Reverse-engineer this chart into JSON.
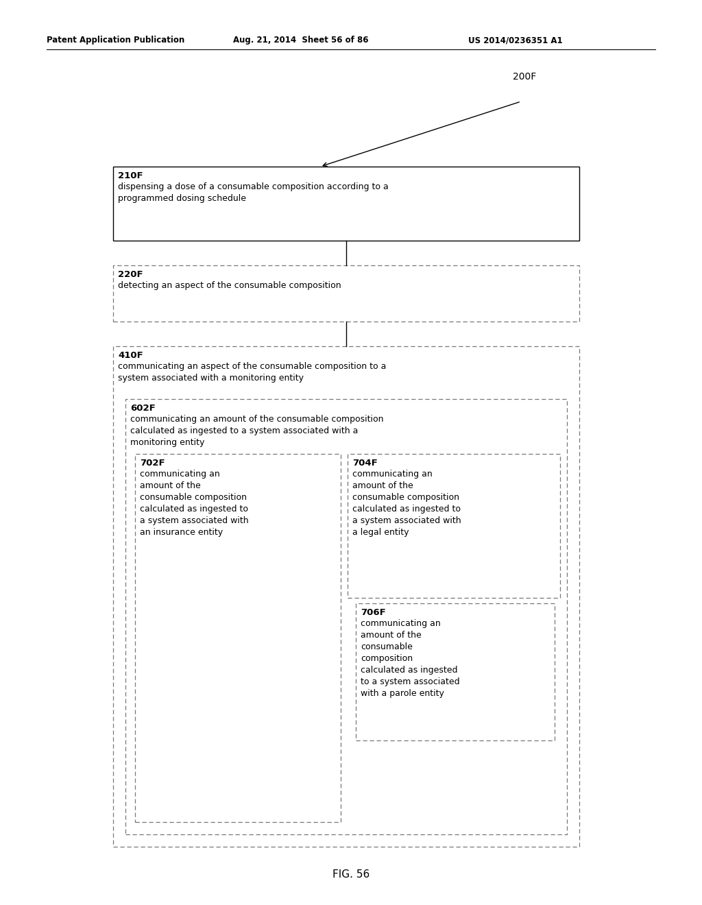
{
  "header_left": "Patent Application Publication",
  "header_mid": "Aug. 21, 2014  Sheet 56 of 86",
  "header_right": "US 2014/0236351 A1",
  "label_200F": "200F",
  "fig_label": "FIG. 56",
  "box_210F_label": "210F",
  "box_210F_text": "dispensing a dose of a consumable composition according to a\nprogrammed dosing schedule",
  "box_220F_label": "220F",
  "box_220F_text": "detecting an aspect of the consumable composition",
  "box_410F_label": "410F",
  "box_410F_text": "communicating an aspect of the consumable composition to a\nsystem associated with a monitoring entity",
  "box_602F_label": "602F",
  "box_602F_text": "communicating an amount of the consumable composition\ncalculated as ingested to a system associated with a\nmonitoring entity",
  "box_702F_label": "702F",
  "box_702F_text": "communicating an\namount of the\nconsumable composition\ncalculated as ingested to\na system associated with\nan insurance entity",
  "box_704F_label": "704F",
  "box_704F_text": "communicating an\namount of the\nconsumable composition\ncalculated as ingested to\na system associated with\na legal entity",
  "box_706F_label": "706F",
  "box_706F_text": "communicating an\namount of the\nconsumable\ncomposition\ncalculated as ingested\nto a system associated\nwith a parole entity",
  "bg_color": "#ffffff",
  "text_color": "#000000"
}
